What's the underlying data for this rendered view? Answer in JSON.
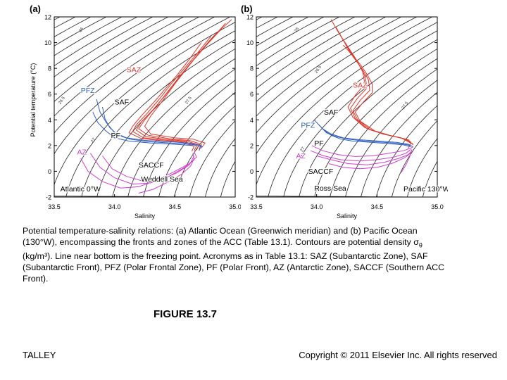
{
  "chart_data": [
    {
      "type": "scatter",
      "panel_label": "(a)",
      "xlabel": "Salinity",
      "ylabel": "Potential temperature (°C)",
      "xlim": [
        33.5,
        35.0
      ],
      "ylim": [
        -2,
        12
      ],
      "xticks": [
        "33.5",
        "34.0",
        "34.5",
        "35.0"
      ],
      "yticks": [
        "-2",
        "0",
        "2",
        "4",
        "6",
        "8",
        "10",
        "12"
      ],
      "location_label": "Atlantic 0°W",
      "contour_labels": [
        {
          "text": "26",
          "s": 33.72,
          "t": 10.8
        },
        {
          "text": "26.5",
          "s": 33.55,
          "t": 5.2
        },
        {
          "text": "27",
          "s": 33.82,
          "t": 2.2
        },
        {
          "text": "27.5",
          "s": 34.6,
          "t": 5.2
        }
      ],
      "annotations": [
        {
          "text": "SAZ",
          "color": "#e0352a",
          "s": 34.1,
          "t": 7.7
        },
        {
          "text": "PFZ",
          "color": "#2f5fc0",
          "s": 33.72,
          "t": 6.1
        },
        {
          "text": "SAF",
          "color": "#000000",
          "s": 34.0,
          "t": 5.2
        },
        {
          "text": "PF",
          "color": "#000000",
          "s": 33.97,
          "t": 2.6
        },
        {
          "text": "AZ",
          "color": "#d040d0",
          "s": 33.69,
          "t": 1.3
        },
        {
          "text": "SACCF",
          "color": "#000000",
          "s": 34.2,
          "t": 0.3
        },
        {
          "text": "Weddell Sea",
          "color": "#000000",
          "s": 34.22,
          "t": -0.8
        }
      ],
      "series": [
        {
          "group": "SAZ",
          "color": "#e0352a",
          "tracks": [
            {
              "s": [
                34.97,
                34.82,
                34.7,
                34.6,
                34.5,
                34.4,
                34.3,
                34.25,
                34.3,
                34.5,
                34.65,
                34.75,
                34.72
              ],
              "t": [
                11.8,
                10.5,
                9.2,
                8.0,
                6.8,
                5.5,
                4.3,
                3.5,
                2.9,
                2.6,
                2.5,
                2.2,
                1.8
              ]
            },
            {
              "s": [
                34.92,
                34.78,
                34.66,
                34.55,
                34.45,
                34.35,
                34.25,
                34.2,
                34.28,
                34.48,
                34.62,
                34.72,
                34.7
              ],
              "t": [
                11.5,
                10.0,
                8.7,
                7.5,
                6.3,
                5.1,
                4.0,
                3.3,
                2.8,
                2.5,
                2.4,
                2.1,
                1.7
              ]
            },
            {
              "s": [
                34.88,
                34.74,
                34.62,
                34.52,
                34.42,
                34.32,
                34.22,
                34.18,
                34.26,
                34.46,
                34.6,
                34.7,
                34.68
              ],
              "t": [
                11.0,
                9.6,
                8.3,
                7.1,
                5.9,
                4.8,
                3.8,
                3.2,
                2.7,
                2.45,
                2.35,
                2.05,
                1.65
              ]
            },
            {
              "s": [
                34.8,
                34.68,
                34.57,
                34.47,
                34.37,
                34.27,
                34.18,
                34.15,
                34.24,
                34.44,
                34.58,
                34.68,
                34.66
              ],
              "t": [
                10.5,
                9.1,
                7.9,
                6.8,
                5.6,
                4.5,
                3.6,
                3.1,
                2.6,
                2.4,
                2.3,
                2.0,
                1.6
              ]
            },
            {
              "s": [
                34.72,
                34.62,
                34.52,
                34.42,
                34.32,
                34.22,
                34.15,
                34.12,
                34.22,
                34.42,
                34.56,
                34.66,
                34.64
              ],
              "t": [
                10.0,
                8.7,
                7.5,
                6.4,
                5.3,
                4.3,
                3.5,
                3.0,
                2.55,
                2.35,
                2.25,
                1.95,
                1.55
              ]
            }
          ]
        },
        {
          "group": "PFZ",
          "color": "#2f5fc0",
          "tracks": [
            {
              "s": [
                33.85,
                33.88,
                33.93,
                34.0,
                34.1,
                34.25,
                34.45,
                34.62,
                34.72,
                34.7
              ],
              "t": [
                5.6,
                4.6,
                3.8,
                3.0,
                2.6,
                2.4,
                2.3,
                2.2,
                2.0,
                1.6
              ]
            },
            {
              "s": [
                33.9,
                33.92,
                33.96,
                34.03,
                34.13,
                34.28,
                34.47,
                34.63,
                34.73
              ],
              "t": [
                5.0,
                4.1,
                3.4,
                2.8,
                2.5,
                2.3,
                2.2,
                2.1,
                1.9
              ]
            },
            {
              "s": [
                33.82,
                33.86,
                33.92,
                34.0,
                34.12,
                34.3,
                34.5,
                34.65
              ],
              "t": [
                4.6,
                3.8,
                3.2,
                2.6,
                2.35,
                2.2,
                2.1,
                2.0
              ]
            }
          ]
        },
        {
          "group": "AZ",
          "color": "#d040d0",
          "tracks": [
            {
              "s": [
                33.72,
                33.78,
                33.9,
                34.05,
                34.2,
                34.35,
                34.5,
                34.62,
                34.68,
                34.66
              ],
              "t": [
                1.0,
                0.0,
                -0.8,
                -1.3,
                -1.2,
                -0.7,
                0.0,
                0.6,
                1.1,
                1.5
              ]
            },
            {
              "s": [
                33.8,
                33.88,
                34.0,
                34.15,
                34.3,
                34.45,
                34.58,
                34.66,
                34.65
              ],
              "t": [
                1.4,
                0.3,
                -0.5,
                -1.0,
                -0.9,
                -0.4,
                0.3,
                0.9,
                1.4
              ]
            },
            {
              "s": [
                33.9,
                33.98,
                34.1,
                34.25,
                34.4,
                34.52,
                34.62,
                34.66
              ],
              "t": [
                1.2,
                0.2,
                -0.4,
                -0.8,
                -0.6,
                -0.1,
                0.5,
                1.2
              ]
            },
            {
              "s": [
                34.2,
                34.32,
                34.45,
                34.56,
                34.63,
                34.66
              ],
              "t": [
                -1.7,
                -1.4,
                -0.8,
                -0.2,
                0.4,
                1.0
              ]
            }
          ]
        }
      ]
    },
    {
      "type": "scatter",
      "panel_label": "(b)",
      "xlabel": "Salinity",
      "ylabel": "",
      "xlim": [
        33.5,
        35.0
      ],
      "ylim": [
        -2,
        12
      ],
      "xticks": [
        "33.5",
        "34.0",
        "34.5",
        "35.0"
      ],
      "yticks": [
        "-2",
        "0",
        "2",
        "4",
        "6",
        "8",
        "10",
        "12"
      ],
      "location_label": "Pacific 130°W",
      "contour_labels": [
        {
          "text": "26",
          "s": 33.83,
          "t": 10.8
        },
        {
          "text": "26.5",
          "s": 34.0,
          "t": 7.6
        },
        {
          "text": "27",
          "s": 33.88,
          "t": 1.5
        },
        {
          "text": "27.5",
          "s": 34.72,
          "t": 4.8
        }
      ],
      "annotations": [
        {
          "text": "SAZ",
          "color": "#e0352a",
          "s": 34.3,
          "t": 6.5
        },
        {
          "text": "SAF",
          "color": "#000000",
          "s": 34.06,
          "t": 4.4
        },
        {
          "text": "PFZ",
          "color": "#2f5fc0",
          "s": 33.87,
          "t": 3.4
        },
        {
          "text": "PF",
          "color": "#000000",
          "s": 33.98,
          "t": 2.0
        },
        {
          "text": "AZ",
          "color": "#d040d0",
          "s": 33.83,
          "t": 1.0
        },
        {
          "text": "SACCF",
          "color": "#000000",
          "s": 33.93,
          "t": -0.2
        },
        {
          "text": "Ross Sea",
          "color": "#000000",
          "s": 33.98,
          "t": -1.5
        }
      ],
      "series": [
        {
          "group": "SAZ",
          "color": "#e0352a",
          "tracks": [
            {
              "s": [
                34.12,
                34.18,
                34.25,
                34.32,
                34.38,
                34.4,
                34.32,
                34.26,
                34.3,
                34.4,
                34.55,
                34.7,
                34.78,
                34.76
              ],
              "t": [
                11.8,
                10.8,
                9.8,
                8.8,
                7.8,
                6.8,
                5.9,
                5.0,
                4.2,
                3.4,
                2.9,
                2.6,
                2.2,
                1.8
              ]
            },
            {
              "s": [
                34.16,
                34.22,
                34.28,
                34.35,
                34.4,
                34.42,
                34.34,
                34.28,
                34.32,
                34.42,
                34.57,
                34.72,
                34.79
              ],
              "t": [
                11.2,
                10.2,
                9.2,
                8.3,
                7.4,
                6.5,
                5.7,
                4.9,
                4.1,
                3.3,
                2.85,
                2.55,
                2.15
              ]
            },
            {
              "s": [
                34.2,
                34.26,
                34.32,
                34.38,
                34.43,
                34.44,
                34.36,
                34.3,
                34.34,
                34.45,
                34.6,
                34.74,
                34.8
              ],
              "t": [
                10.5,
                9.6,
                8.7,
                7.9,
                7.1,
                6.3,
                5.5,
                4.7,
                4.0,
                3.2,
                2.8,
                2.5,
                2.1
              ]
            },
            {
              "s": [
                34.22,
                34.3,
                34.37,
                34.42,
                34.46,
                34.46,
                34.38,
                34.32,
                34.36,
                34.48,
                34.62,
                34.76,
                34.8
              ],
              "t": [
                9.8,
                9.0,
                8.2,
                7.5,
                6.8,
                6.1,
                5.3,
                4.6,
                3.9,
                3.15,
                2.75,
                2.45,
                2.05
              ]
            }
          ]
        },
        {
          "group": "PFZ",
          "color": "#2f5fc0",
          "tracks": [
            {
              "s": [
                33.98,
                34.05,
                34.12,
                34.22,
                34.36,
                34.52,
                34.66,
                34.76,
                34.8
              ],
              "t": [
                4.0,
                3.3,
                2.9,
                2.6,
                2.45,
                2.35,
                2.25,
                2.1,
                1.9
              ]
            },
            {
              "s": [
                34.02,
                34.08,
                34.16,
                34.26,
                34.4,
                34.56,
                34.7,
                34.78
              ],
              "t": [
                3.6,
                3.0,
                2.7,
                2.5,
                2.35,
                2.25,
                2.15,
                2.0
              ]
            },
            {
              "s": [
                34.06,
                34.12,
                34.2,
                34.3,
                34.45,
                34.6,
                34.72,
                34.78
              ],
              "t": [
                3.2,
                2.8,
                2.5,
                2.35,
                2.25,
                2.15,
                2.05,
                1.9
              ]
            }
          ]
        },
        {
          "group": "AZ",
          "color": "#d040d0",
          "tracks": [
            {
              "s": [
                33.96,
                34.05,
                34.18,
                34.32,
                34.46,
                34.6,
                34.72,
                34.78,
                34.8
              ],
              "t": [
                2.0,
                1.6,
                1.3,
                1.15,
                1.2,
                1.4,
                1.6,
                1.8,
                1.9
              ]
            },
            {
              "s": [
                33.95,
                34.06,
                34.2,
                34.36,
                34.5,
                34.64,
                34.74,
                34.78
              ],
              "t": [
                1.6,
                1.2,
                0.9,
                0.8,
                0.9,
                1.1,
                1.4,
                1.7
              ]
            },
            {
              "s": [
                34.0,
                34.12,
                34.26,
                34.42,
                34.56,
                34.68,
                34.76,
                34.79
              ],
              "t": [
                1.2,
                0.9,
                0.6,
                0.5,
                0.7,
                1.0,
                1.3,
                1.6
              ]
            },
            {
              "s": [
                34.1,
                34.22,
                34.36,
                34.5,
                34.62,
                34.72,
                34.78
              ],
              "t": [
                0.6,
                0.3,
                0.2,
                0.3,
                0.6,
                1.0,
                1.4
              ]
            },
            {
              "s": [
                34.7,
                34.74,
                34.77,
                34.79
              ],
              "t": [
                -0.1,
                0.5,
                1.1,
                1.7
              ]
            }
          ]
        }
      ]
    }
  ],
  "caption": {
    "prefix": "Potential temperature-salinity relations: (a) Atlantic Ocean (Greenwich  meridian) and (b) Pacific Ocean (130°W), encompassing the fronts and zones of the ACC (Table 13.1). Contours are potential density ",
    "sigma_symbol": "σ",
    "sigma_sub": "θ",
    "suffix": " (kg/m³). Line near bottom is the freezing point. Acronyms as in Table 13.1: SAZ (Subantarctic Zone), SAF (Subantarctic Front), PFZ (Polar Frontal Zone), PF (Polar Front), AZ (Antarctic Zone), SACCF (Southern ACC Front)."
  },
  "figure_label": "FIGURE 13.7",
  "footer": {
    "author": "TALLEY",
    "copyright": "Copyright © 2011 Elsevier Inc. All rights reserved"
  }
}
